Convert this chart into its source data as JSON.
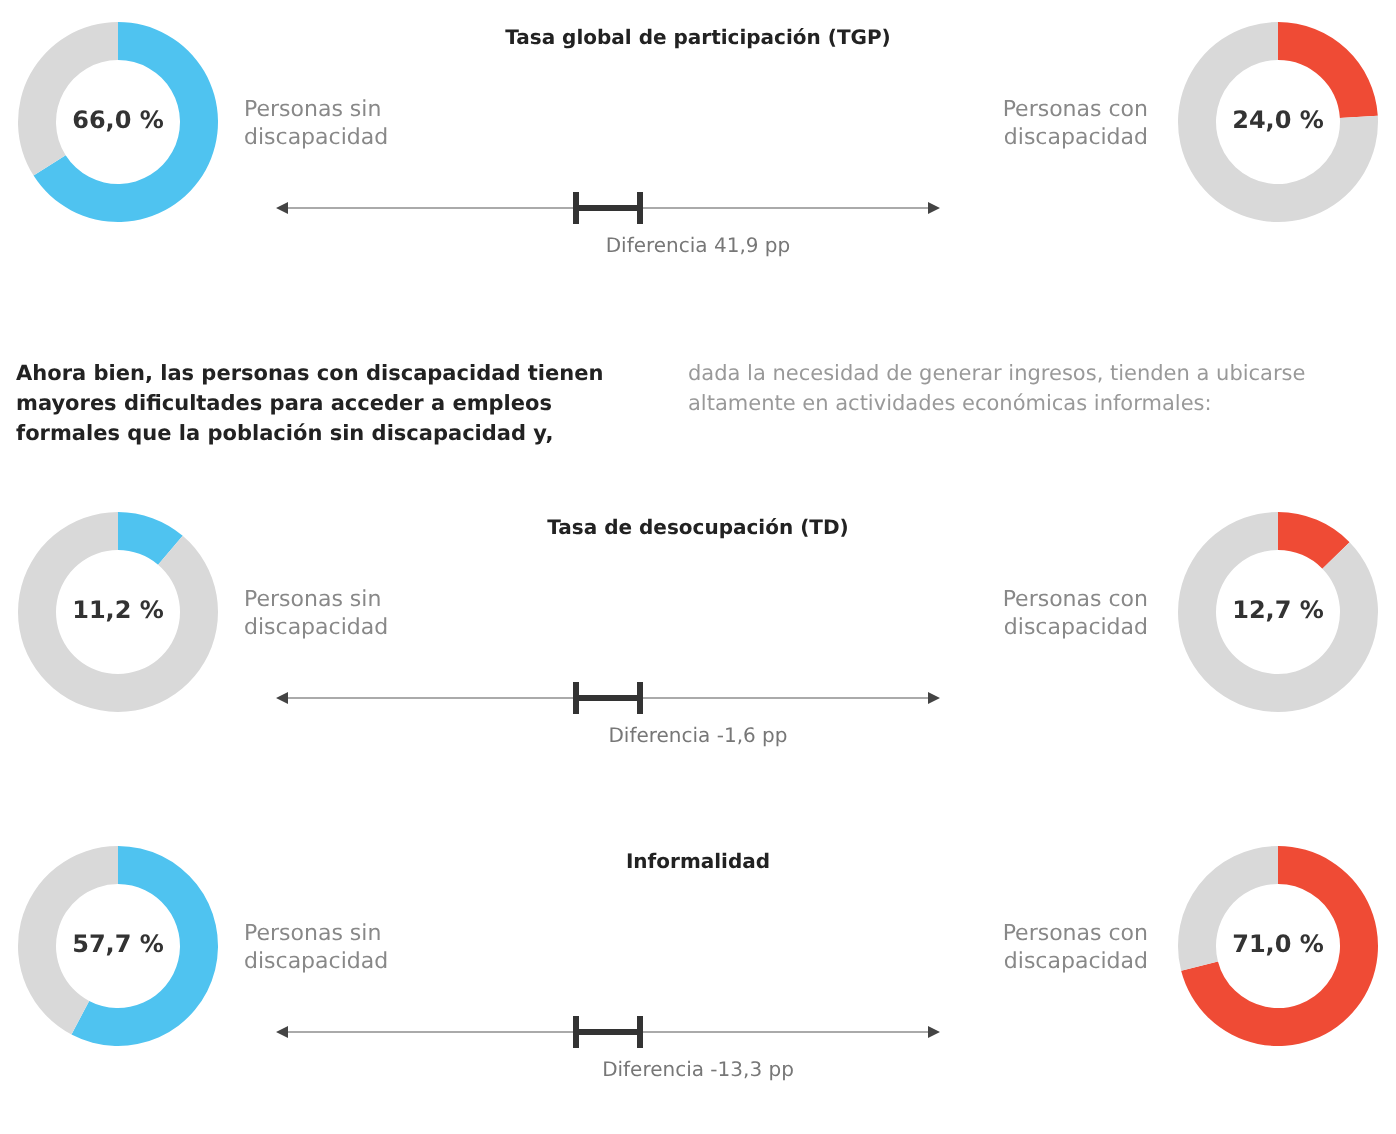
{
  "chart_data": [
    {
      "type": "donut",
      "title": "Personas sin discapacidad",
      "categories": [
        null,
        null
      ],
      "values": [
        66.0,
        34.0
      ],
      "colors": [
        "#4fc3f0",
        "#d9d9d9"
      ],
      "value_labels": [
        "66,0 %",
        null
      ]
    },
    {
      "type": "other",
      "title": "Tasa global de participación (TGP)",
      "annotations": [
        "Diferencia 41,9 pp"
      ]
    },
    {
      "type": "donut",
      "title": "Personas con discapacidad",
      "categories": [
        null,
        null
      ],
      "values": [
        24.0,
        76.0
      ],
      "colors": [
        "#ef4b35",
        "#d9d9d9"
      ],
      "value_labels": [
        "24,0 %",
        null
      ]
    },
    {
      "type": "other",
      "annotations": [
        "Ahora bien, las personas con discapacidad tienen mayores dificultades para acceder a empleos formales que la población sin discapacidad y,",
        "dada la necesidad de generar ingresos, tienden a ubicarse altamente en actividades económicas informales:"
      ]
    },
    {
      "type": "donut",
      "title": "Personas sin discapacidad",
      "categories": [
        null,
        null
      ],
      "values": [
        11.2,
        88.8
      ],
      "colors": [
        "#4fc3f0",
        "#d9d9d9"
      ],
      "value_labels": [
        "11,2 %",
        null
      ]
    },
    {
      "type": "other",
      "title": "Tasa de desocupación (TD)",
      "annotations": [
        "Diferencia -1,6 pp"
      ]
    },
    {
      "type": "donut",
      "title": "Personas con discapacidad",
      "categories": [
        null,
        null
      ],
      "values": [
        12.7,
        87.3
      ],
      "colors": [
        "#ef4b35",
        "#d9d9d9"
      ],
      "value_labels": [
        "12,7 %",
        null
      ]
    },
    {
      "type": "donut",
      "title": "Personas sin discapacidad",
      "categories": [
        null,
        null
      ],
      "values": [
        57.7,
        42.3
      ],
      "colors": [
        "#4fc3f0",
        "#d9d9d9"
      ],
      "value_labels": [
        "57,7 %",
        null
      ]
    },
    {
      "type": "other",
      "title": "Informalidad",
      "annotations": [
        "Diferencia -13,3 pp"
      ]
    },
    {
      "type": "donut",
      "title": "Personas con discapacidad",
      "categories": [
        null,
        null
      ],
      "values": [
        71.0,
        29.0
      ],
      "colors": [
        "#ef4b35",
        "#d9d9d9"
      ],
      "value_labels": [
        "71,0 %",
        null
      ]
    }
  ]
}
